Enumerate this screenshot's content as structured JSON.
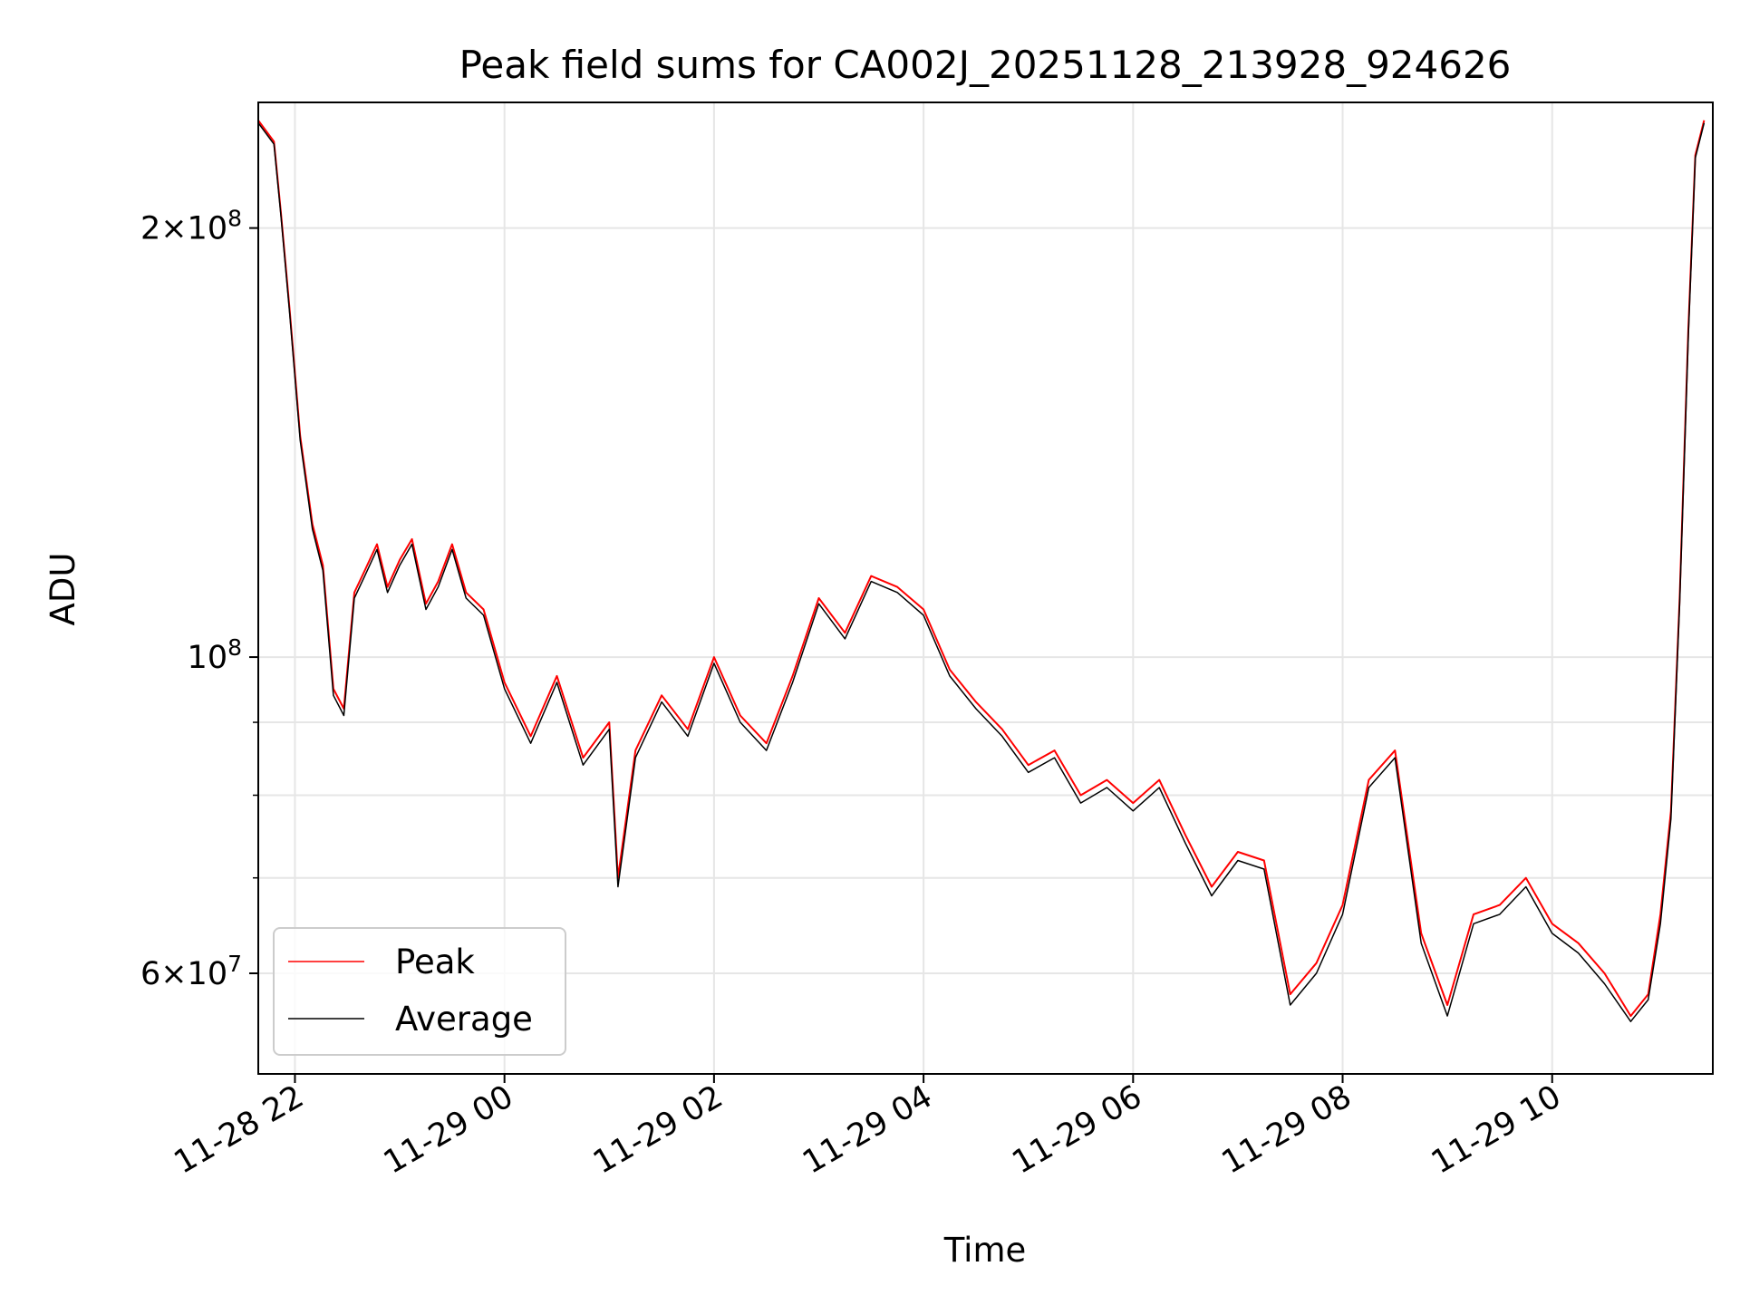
{
  "chart_data": {
    "type": "line",
    "title": "Peak field sums for CA002J_20251128_213928_924626",
    "xlabel": "Time",
    "ylabel": "ADU",
    "y_scale": "log",
    "xlim": [
      "2025-11-28T21:39",
      "2025-11-29T11:32"
    ],
    "ylim": [
      51000000,
      245000000
    ],
    "x_tick_labels": [
      "11-28 22",
      "11-29 00",
      "11-29 02",
      "11-29 04",
      "11-29 06",
      "11-29 08",
      "11-29 10"
    ],
    "x_tick_values": [
      "2025-11-28T22:00",
      "2025-11-29T00:00",
      "2025-11-29T02:00",
      "2025-11-29T04:00",
      "2025-11-29T06:00",
      "2025-11-29T08:00",
      "2025-11-29T10:00"
    ],
    "y_major_ticks": [
      {
        "value": 200000000,
        "mantissa": "2",
        "exponent": "8"
      },
      {
        "value": 100000000,
        "mantissa": "",
        "exponent": "8"
      },
      {
        "value": 60000000,
        "mantissa": "6",
        "exponent": "7"
      }
    ],
    "y_minor_ticks": [
      70000000,
      80000000,
      90000000
    ],
    "grid": true,
    "legend_position": "lower-left",
    "series": [
      {
        "name": "Peak",
        "color": "#ff0000",
        "x": [
          "2025-11-28T21:39",
          "2025-11-28T21:48",
          "2025-11-28T21:52",
          "2025-11-28T21:57",
          "2025-11-28T22:03",
          "2025-11-28T22:10",
          "2025-11-28T22:16",
          "2025-11-28T22:22",
          "2025-11-28T22:28",
          "2025-11-28T22:34",
          "2025-11-28T22:40",
          "2025-11-28T22:47",
          "2025-11-28T22:53",
          "2025-11-28T23:00",
          "2025-11-28T23:07",
          "2025-11-28T23:15",
          "2025-11-28T23:22",
          "2025-11-28T23:30",
          "2025-11-28T23:38",
          "2025-11-28T23:48",
          "2025-11-29T00:00",
          "2025-11-29T00:15",
          "2025-11-29T00:30",
          "2025-11-29T00:45",
          "2025-11-29T01:00",
          "2025-11-29T01:05",
          "2025-11-29T01:15",
          "2025-11-29T01:30",
          "2025-11-29T01:45",
          "2025-11-29T02:00",
          "2025-11-29T02:15",
          "2025-11-29T02:30",
          "2025-11-29T02:45",
          "2025-11-29T03:00",
          "2025-11-29T03:15",
          "2025-11-29T03:30",
          "2025-11-29T03:45",
          "2025-11-29T04:00",
          "2025-11-29T04:15",
          "2025-11-29T04:30",
          "2025-11-29T04:45",
          "2025-11-29T05:00",
          "2025-11-29T05:15",
          "2025-11-29T05:30",
          "2025-11-29T05:45",
          "2025-11-29T06:00",
          "2025-11-29T06:15",
          "2025-11-29T06:30",
          "2025-11-29T06:45",
          "2025-11-29T07:00",
          "2025-11-29T07:15",
          "2025-11-29T07:30",
          "2025-11-29T07:45",
          "2025-11-29T08:00",
          "2025-11-29T08:15",
          "2025-11-29T08:30",
          "2025-11-29T08:45",
          "2025-11-29T09:00",
          "2025-11-29T09:15",
          "2025-11-29T09:30",
          "2025-11-29T09:45",
          "2025-11-29T10:00",
          "2025-11-29T10:15",
          "2025-11-29T10:30",
          "2025-11-29T10:45",
          "2025-11-29T10:55",
          "2025-11-29T11:02",
          "2025-11-29T11:08",
          "2025-11-29T11:13",
          "2025-11-29T11:18",
          "2025-11-29T11:22",
          "2025-11-29T11:27"
        ],
        "values": [
          238000000,
          230000000,
          205000000,
          175000000,
          143000000,
          124000000,
          116000000,
          95000000,
          92000000,
          111000000,
          115000000,
          120000000,
          112000000,
          117000000,
          121000000,
          109000000,
          113000000,
          120000000,
          111000000,
          108000000,
          96000000,
          88000000,
          97000000,
          85000000,
          90000000,
          70000000,
          86000000,
          94000000,
          89000000,
          100000000,
          91000000,
          87000000,
          97000000,
          110000000,
          104000000,
          114000000,
          112000000,
          108000000,
          98000000,
          93000000,
          89000000,
          84000000,
          86000000,
          80000000,
          82000000,
          79000000,
          82000000,
          75000000,
          69000000,
          73000000,
          72000000,
          58000000,
          61000000,
          67000000,
          82000000,
          86000000,
          64000000,
          57000000,
          66000000,
          67000000,
          70000000,
          65000000,
          63000000,
          60000000,
          56000000,
          58000000,
          66000000,
          78000000,
          110000000,
          170000000,
          225000000,
          238000000
        ]
      },
      {
        "name": "Average",
        "color": "#000000",
        "x": [
          "2025-11-28T21:39",
          "2025-11-28T21:48",
          "2025-11-28T21:52",
          "2025-11-28T21:57",
          "2025-11-28T22:03",
          "2025-11-28T22:10",
          "2025-11-28T22:16",
          "2025-11-28T22:22",
          "2025-11-28T22:28",
          "2025-11-28T22:34",
          "2025-11-28T22:40",
          "2025-11-28T22:47",
          "2025-11-28T22:53",
          "2025-11-28T23:00",
          "2025-11-28T23:07",
          "2025-11-28T23:15",
          "2025-11-28T23:22",
          "2025-11-28T23:30",
          "2025-11-28T23:38",
          "2025-11-28T23:48",
          "2025-11-29T00:00",
          "2025-11-29T00:15",
          "2025-11-29T00:30",
          "2025-11-29T00:45",
          "2025-11-29T01:00",
          "2025-11-29T01:05",
          "2025-11-29T01:15",
          "2025-11-29T01:30",
          "2025-11-29T01:45",
          "2025-11-29T02:00",
          "2025-11-29T02:15",
          "2025-11-29T02:30",
          "2025-11-29T02:45",
          "2025-11-29T03:00",
          "2025-11-29T03:15",
          "2025-11-29T03:30",
          "2025-11-29T03:45",
          "2025-11-29T04:00",
          "2025-11-29T04:15",
          "2025-11-29T04:30",
          "2025-11-29T04:45",
          "2025-11-29T05:00",
          "2025-11-29T05:15",
          "2025-11-29T05:30",
          "2025-11-29T05:45",
          "2025-11-29T06:00",
          "2025-11-29T06:15",
          "2025-11-29T06:30",
          "2025-11-29T06:45",
          "2025-11-29T07:00",
          "2025-11-29T07:15",
          "2025-11-29T07:30",
          "2025-11-29T07:45",
          "2025-11-29T08:00",
          "2025-11-29T08:15",
          "2025-11-29T08:30",
          "2025-11-29T08:45",
          "2025-11-29T09:00",
          "2025-11-29T09:15",
          "2025-11-29T09:30",
          "2025-11-29T09:45",
          "2025-11-29T10:00",
          "2025-11-29T10:15",
          "2025-11-29T10:30",
          "2025-11-29T10:45",
          "2025-11-29T10:55",
          "2025-11-29T11:02",
          "2025-11-29T11:08",
          "2025-11-29T11:13",
          "2025-11-29T11:18",
          "2025-11-29T11:22",
          "2025-11-29T11:27"
        ],
        "values": [
          237000000,
          229000000,
          204000000,
          174000000,
          142000000,
          123000000,
          115000000,
          94000000,
          91000000,
          110000000,
          114000000,
          119000000,
          111000000,
          116000000,
          120000000,
          108000000,
          112000000,
          119000000,
          110000000,
          107000000,
          95000000,
          87000000,
          96000000,
          84000000,
          89000000,
          69000000,
          85000000,
          93000000,
          88000000,
          99000000,
          90000000,
          86000000,
          96000000,
          109000000,
          103000000,
          113000000,
          111000000,
          107000000,
          97000000,
          92000000,
          88000000,
          83000000,
          85000000,
          79000000,
          81000000,
          78000000,
          81000000,
          74000000,
          68000000,
          72000000,
          71000000,
          57000000,
          60000000,
          66000000,
          81000000,
          85000000,
          63000000,
          56000000,
          65000000,
          66000000,
          69000000,
          64000000,
          62000000,
          59000000,
          55500000,
          57500000,
          65000000,
          77000000,
          109000000,
          168000000,
          224000000,
          237000000
        ]
      }
    ]
  }
}
